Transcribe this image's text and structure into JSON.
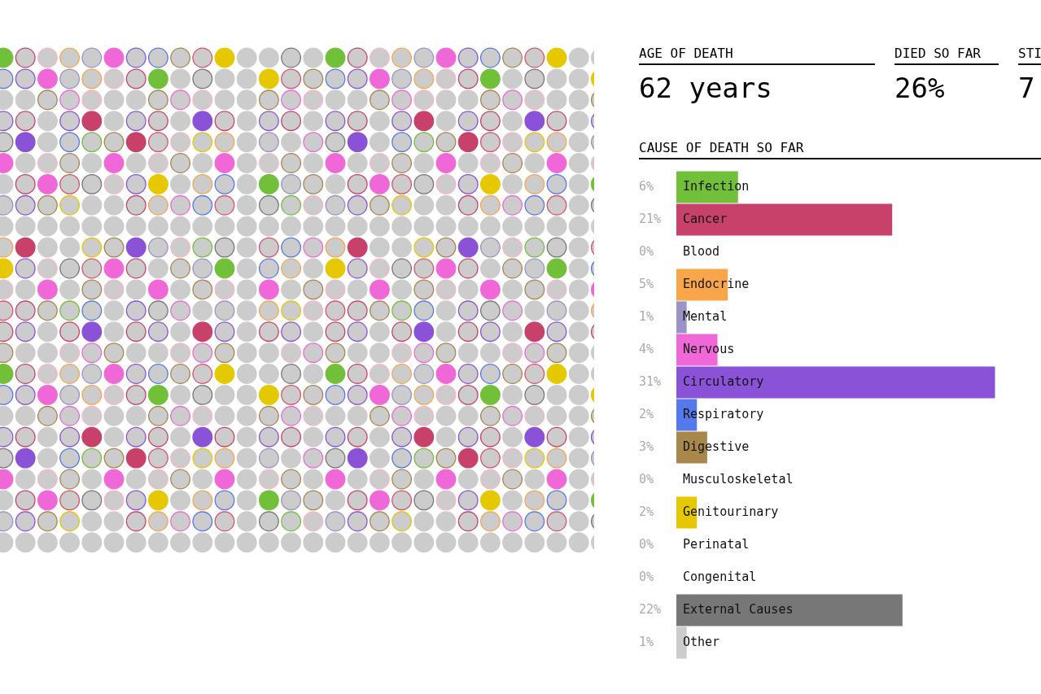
{
  "chart_data": {
    "type": "bar",
    "orientation": "horizontal",
    "title": "CAUSE OF DEATH SO FAR",
    "categories": [
      "Infection",
      "Cancer",
      "Blood",
      "Endocrine",
      "Mental",
      "Nervous",
      "Circulatory",
      "Respiratory",
      "Digestive",
      "Musculoskeletal",
      "Genitourinary",
      "Perinatal",
      "Congenital",
      "External Causes",
      "Other"
    ],
    "values": [
      6,
      21,
      0,
      5,
      1,
      4,
      31,
      2,
      3,
      0,
      2,
      0,
      0,
      22,
      1
    ],
    "colors": [
      "#72c03a",
      "#c8416b",
      "#f7b6c8",
      "#f9a64a",
      "#9a93c8",
      "#f068d8",
      "#8a52d6",
      "#5479ea",
      "#a8874a",
      "#d9526a",
      "#e6c800",
      "#cccccc",
      "#cccccc",
      "#777777",
      "#cccccc"
    ],
    "value_labels": [
      "6%",
      "21%",
      "0%",
      "5%",
      "1%",
      "4%",
      "31%",
      "2%",
      "3%",
      "0%",
      "2%",
      "0%",
      "0%",
      "22%",
      "1%"
    ],
    "annotations": [
      "AGE OF DEATH",
      "62 years",
      "DIED SO FAR",
      "26%",
      "STI",
      "7"
    ],
    "legend": false
  }
}
